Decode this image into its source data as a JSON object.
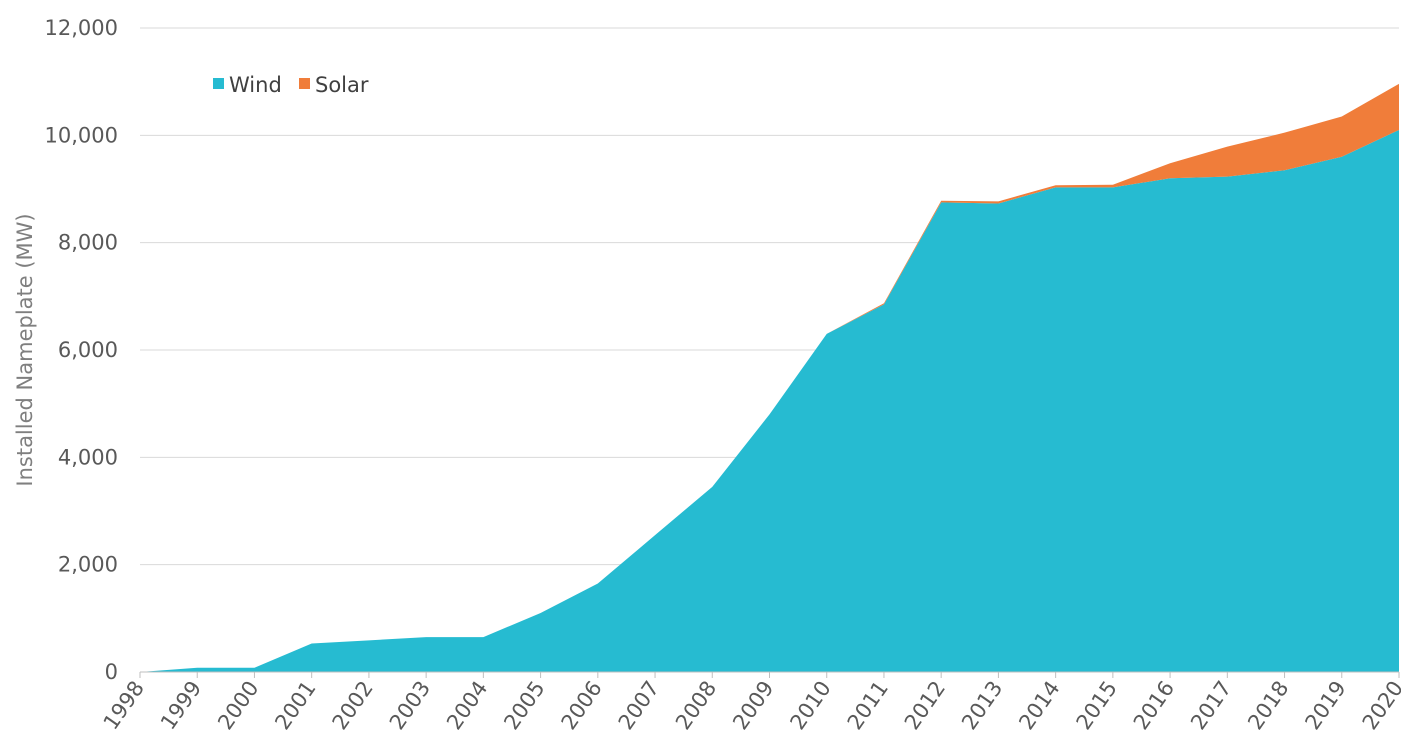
{
  "chart_data": {
    "type": "area",
    "stacked": true,
    "title": "",
    "xlabel": "",
    "ylabel": "Installed Nameplate (MW)",
    "x": [
      "1998",
      "1999",
      "2000",
      "2001",
      "2002",
      "2003",
      "2004",
      "2005",
      "2006",
      "2007",
      "2008",
      "2009",
      "2010",
      "2011",
      "2012",
      "2013",
      "2014",
      "2015",
      "2016",
      "2017",
      "2018",
      "2019",
      "2020"
    ],
    "ylim": [
      0,
      12000
    ],
    "yticks": [
      0,
      2000,
      4000,
      6000,
      8000,
      10000,
      12000
    ],
    "ytick_labels": [
      "0",
      "2,000",
      "4,000",
      "6,000",
      "8,000",
      "10,000",
      "12,000"
    ],
    "series": [
      {
        "name": "Wind",
        "color": "#26bbd1",
        "values": [
          0,
          80,
          80,
          530,
          590,
          650,
          650,
          1100,
          1650,
          2550,
          3450,
          4800,
          6300,
          6850,
          8750,
          8730,
          9030,
          9030,
          9200,
          9230,
          9350,
          9600,
          10100
        ]
      },
      {
        "name": "Solar",
        "color": "#f07d3a",
        "values": [
          0,
          0,
          0,
          0,
          0,
          0,
          0,
          0,
          0,
          0,
          0,
          0,
          0,
          20,
          30,
          40,
          40,
          50,
          280,
          560,
          700,
          750,
          860
        ]
      }
    ],
    "grid": true,
    "legend": {
      "position": "top-left",
      "entries": [
        "Wind",
        "Solar"
      ]
    }
  }
}
